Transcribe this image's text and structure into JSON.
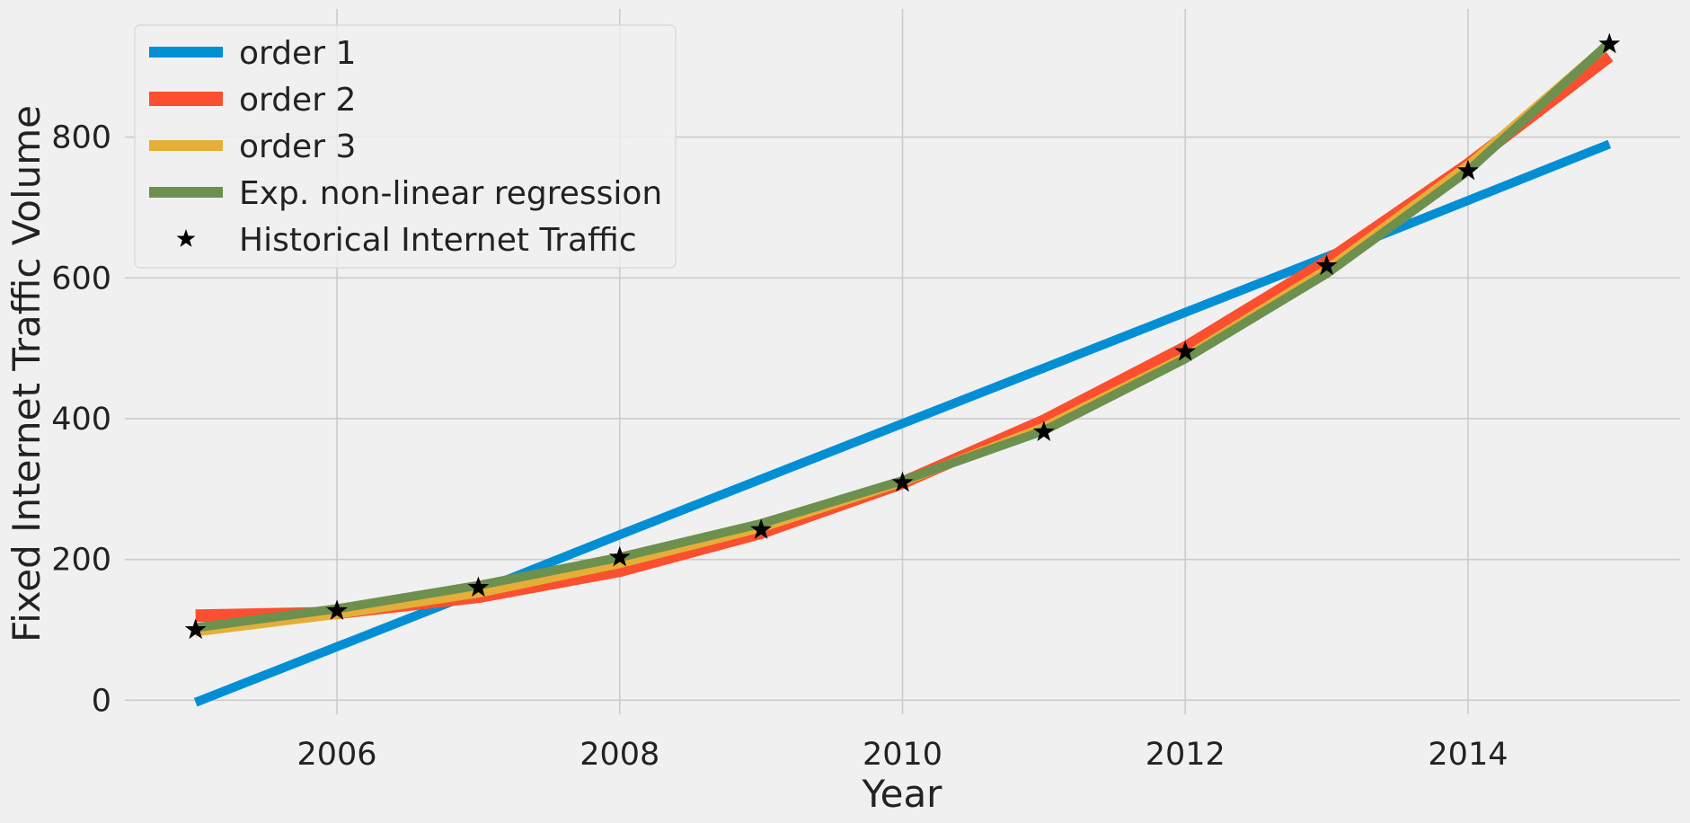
{
  "chart_data": {
    "type": "line",
    "title": "",
    "xlabel": "Year",
    "ylabel": "Fixed Internet Traffic Volume",
    "xlim": [
      2004.5,
      2015.5
    ],
    "ylim": [
      -20,
      982
    ],
    "x_ticks": [
      2006,
      2008,
      2010,
      2012,
      2014
    ],
    "y_ticks": [
      0,
      200,
      400,
      600,
      800
    ],
    "grid": true,
    "legend_position": "top-left",
    "series": [
      {
        "name": "order 1",
        "kind": "line",
        "color": "#008fd5",
        "x": [
          2005,
          2006,
          2007,
          2008,
          2009,
          2010,
          2011,
          2012,
          2013,
          2014,
          2015
        ],
        "y": [
          -3,
          76,
          155,
          235,
          314,
          393,
          472,
          551,
          630,
          710,
          790
        ]
      },
      {
        "name": "order 2",
        "kind": "line",
        "color": "#fc4f30",
        "x": [
          2005,
          2006,
          2007,
          2008,
          2009,
          2010,
          2011,
          2012,
          2013,
          2014,
          2015
        ],
        "y": [
          120,
          124,
          147,
          184,
          238,
          309,
          397,
          501,
          623,
          761,
          915
        ]
      },
      {
        "name": "order 3",
        "kind": "line",
        "color": "#e5ae38",
        "x": [
          2005,
          2006,
          2007,
          2008,
          2009,
          2010,
          2011,
          2012,
          2013,
          2014,
          2015
        ],
        "y": [
          97,
          122,
          152,
          194,
          245,
          310,
          388,
          488,
          612,
          760,
          933
        ]
      },
      {
        "name": "Exp. non-linear regression",
        "kind": "line",
        "color": "#6d904f",
        "x": [
          2005,
          2006,
          2007,
          2008,
          2009,
          2010,
          2011,
          2012,
          2013,
          2014,
          2015
        ],
        "y": [
          103,
          130,
          163,
          203,
          251,
          312,
          383,
          485,
          606,
          752,
          934
        ]
      },
      {
        "name": "Historical Internet Traffic",
        "kind": "scatter",
        "marker": "star",
        "color": "#000000",
        "x": [
          2005,
          2006,
          2007,
          2008,
          2009,
          2010,
          2011,
          2012,
          2013,
          2014,
          2015
        ],
        "y": [
          100,
          127,
          160,
          203,
          242,
          309,
          381,
          495,
          617,
          752,
          932
        ]
      }
    ]
  }
}
